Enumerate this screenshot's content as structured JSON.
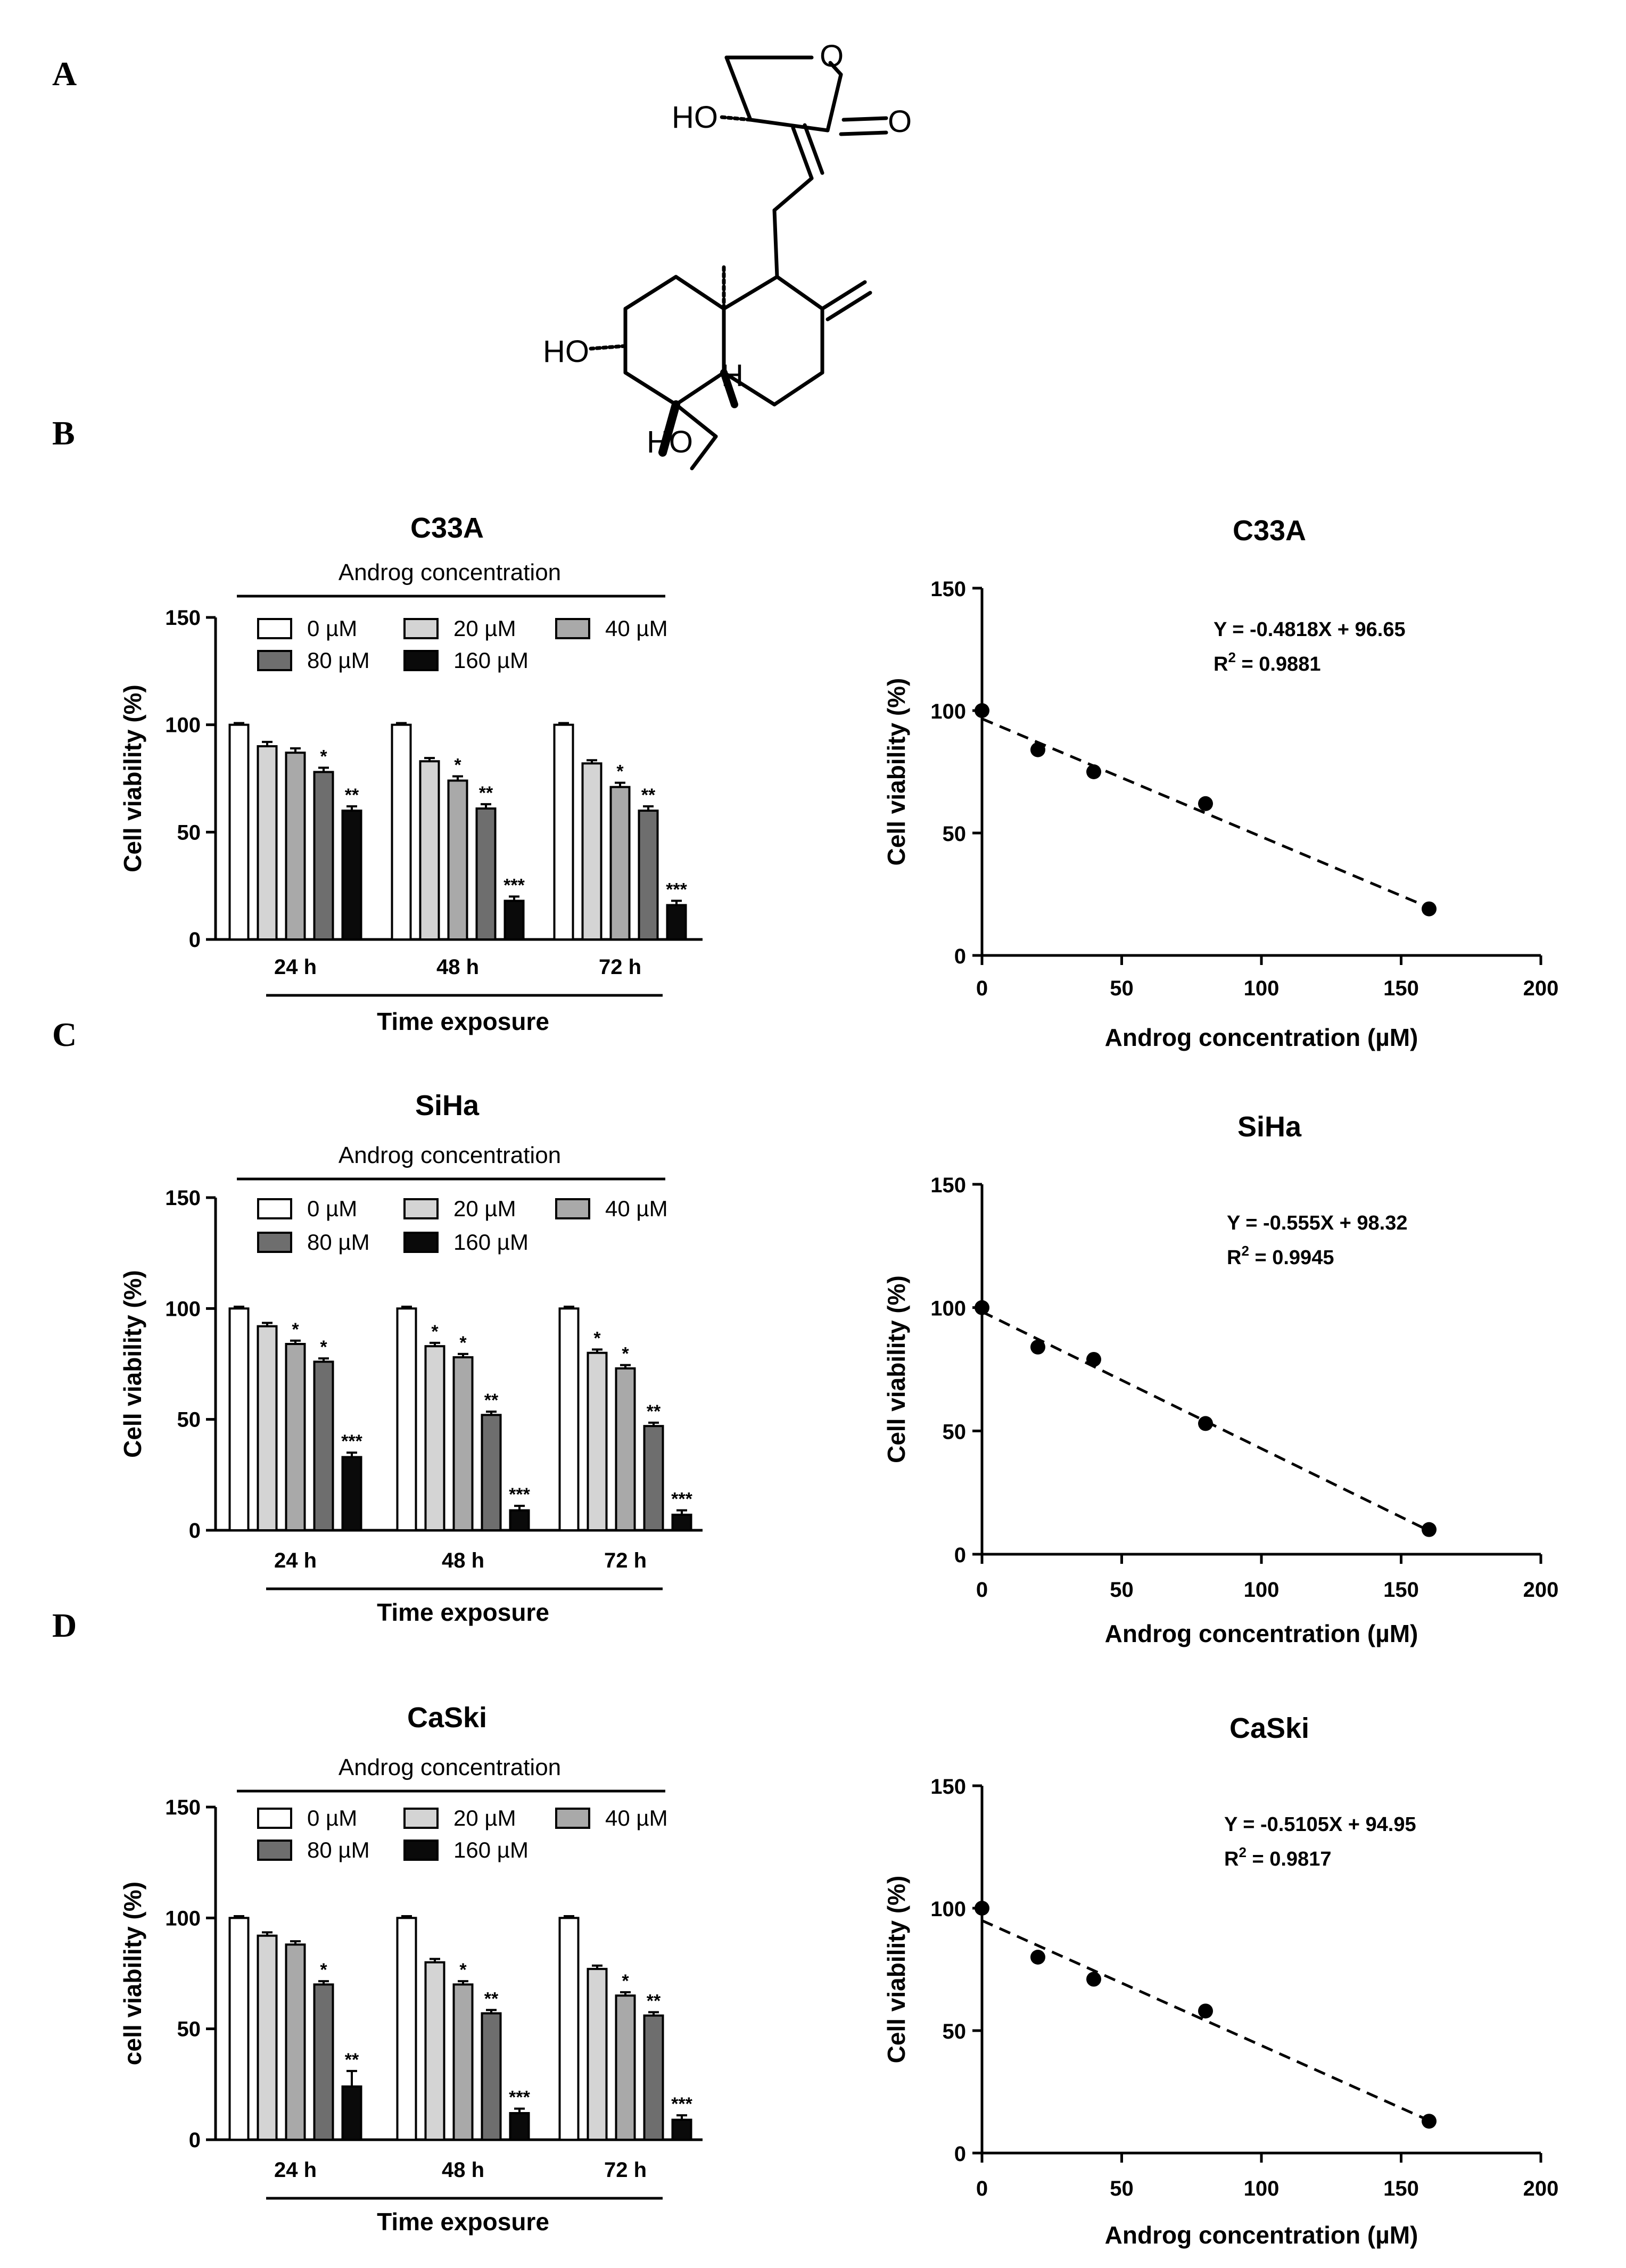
{
  "panels": [
    "A",
    "B",
    "C",
    "D"
  ],
  "molecule": {
    "atoms": [
      "O",
      "O",
      "HO",
      "HO",
      "H",
      "HO"
    ]
  },
  "colors": {
    "bar_fills": [
      "#ffffff",
      "#d4d4d4",
      "#a9a9a9",
      "#6e6e6e",
      "#0a0a0a"
    ],
    "stroke": "#000000"
  },
  "chart_data": [
    {
      "id": "bar-c33a",
      "type": "bar",
      "title": "C33A",
      "subtitle": "Androg concentration",
      "xlabel": "Time exposure",
      "ylabel": "Cell viability (%)",
      "ylim": [
        0,
        150
      ],
      "yticks": [
        "0",
        "50",
        "100",
        "150"
      ],
      "categories": [
        "24 h",
        "48 h",
        "72 h"
      ],
      "series": [
        {
          "name": "0 µM",
          "values": [
            100,
            100,
            100
          ],
          "errors": [
            0.8,
            0.8,
            0.8
          ],
          "stars": [
            "",
            "",
            ""
          ]
        },
        {
          "name": "20 µM",
          "values": [
            90,
            83,
            82
          ],
          "errors": [
            2,
            1.5,
            1.5
          ],
          "stars": [
            "",
            "",
            ""
          ]
        },
        {
          "name": "40 µM",
          "values": [
            87,
            74,
            71
          ],
          "errors": [
            2,
            2,
            2
          ],
          "stars": [
            "",
            "*",
            "*"
          ]
        },
        {
          "name": "80 µM",
          "values": [
            78,
            61,
            60
          ],
          "errors": [
            2,
            2,
            2
          ],
          "stars": [
            "*",
            "**",
            "**"
          ]
        },
        {
          "name": "160 µM",
          "values": [
            60,
            18,
            16
          ],
          "errors": [
            2,
            2,
            2
          ],
          "stars": [
            "**",
            "***",
            "***"
          ]
        }
      ]
    },
    {
      "id": "line-c33a",
      "type": "scatter",
      "title": "C33A",
      "xlabel": "Androg concentration (µM)",
      "ylabel": "Cell viability (%)",
      "xlim": [
        0,
        200
      ],
      "ylim": [
        0,
        150
      ],
      "xticks": [
        "0",
        "50",
        "100",
        "150",
        "200"
      ],
      "yticks": [
        "0",
        "50",
        "100",
        "150"
      ],
      "x": [
        0,
        20,
        40,
        80,
        160
      ],
      "y": [
        100,
        84,
        75,
        62,
        19
      ],
      "fit": {
        "slope": -0.4818,
        "intercept": 96.65
      },
      "equation": "Y = -0.4818X + 96.65",
      "r2_label": "R",
      "r2_sup": "2",
      "r2_value": " = 0.9881"
    },
    {
      "id": "bar-siha",
      "type": "bar",
      "title": "SiHa",
      "subtitle": "Androg concentration",
      "xlabel": "Time exposure",
      "ylabel": "Cell viability (%)",
      "ylim": [
        0,
        150
      ],
      "yticks": [
        "0",
        "50",
        "100",
        "150"
      ],
      "categories": [
        "24 h",
        "48 h",
        "72 h"
      ],
      "series": [
        {
          "name": "0 µM",
          "values": [
            100,
            100,
            100
          ],
          "errors": [
            0.8,
            0.8,
            0.8
          ],
          "stars": [
            "",
            "",
            ""
          ]
        },
        {
          "name": "20 µM",
          "values": [
            92,
            83,
            80
          ],
          "errors": [
            1.5,
            1.5,
            1.5
          ],
          "stars": [
            "",
            "*",
            "*"
          ]
        },
        {
          "name": "40 µM",
          "values": [
            84,
            78,
            73
          ],
          "errors": [
            1.5,
            1.5,
            1.5
          ],
          "stars": [
            "*",
            "*",
            "*"
          ]
        },
        {
          "name": "80 µM",
          "values": [
            76,
            52,
            47
          ],
          "errors": [
            1.5,
            1.5,
            1.5
          ],
          "stars": [
            "*",
            "**",
            "**"
          ]
        },
        {
          "name": "160 µM",
          "values": [
            33,
            9,
            7
          ],
          "errors": [
            2,
            2,
            2
          ],
          "stars": [
            "***",
            "***",
            "***"
          ]
        }
      ]
    },
    {
      "id": "line-siha",
      "type": "scatter",
      "title": "SiHa",
      "xlabel": "Androg concentration (µM)",
      "ylabel": "Cell viability (%)",
      "xlim": [
        0,
        200
      ],
      "ylim": [
        0,
        150
      ],
      "xticks": [
        "0",
        "50",
        "100",
        "150",
        "200"
      ],
      "yticks": [
        "0",
        "50",
        "100",
        "150"
      ],
      "x": [
        0,
        20,
        40,
        80,
        160
      ],
      "y": [
        100,
        84,
        79,
        53,
        10
      ],
      "fit": {
        "slope": -0.555,
        "intercept": 98.32
      },
      "equation": "Y = -0.555X + 98.32",
      "r2_label": "R",
      "r2_sup": "2",
      "r2_value": " = 0.9945"
    },
    {
      "id": "bar-caski",
      "type": "bar",
      "title": "CaSki",
      "subtitle": "Androg concentration",
      "xlabel": "Time exposure",
      "ylabel": "cell viability (%)",
      "ylim": [
        0,
        150
      ],
      "yticks": [
        "0",
        "50",
        "100",
        "150"
      ],
      "categories": [
        "24 h",
        "48 h",
        "72 h"
      ],
      "series": [
        {
          "name": "0 µM",
          "values": [
            100,
            100,
            100
          ],
          "errors": [
            0.8,
            0.8,
            0.8
          ],
          "stars": [
            "",
            "",
            ""
          ]
        },
        {
          "name": "20 µM",
          "values": [
            92,
            80,
            77
          ],
          "errors": [
            1.5,
            1.5,
            1.5
          ],
          "stars": [
            "",
            "",
            ""
          ]
        },
        {
          "name": "40 µM",
          "values": [
            88,
            70,
            65
          ],
          "errors": [
            1.5,
            1.5,
            1.5
          ],
          "stars": [
            "",
            "*",
            "*"
          ]
        },
        {
          "name": "80 µM",
          "values": [
            70,
            57,
            56
          ],
          "errors": [
            1.5,
            1.5,
            1.5
          ],
          "stars": [
            "*",
            "**",
            "**"
          ]
        },
        {
          "name": "160 µM",
          "values": [
            24,
            12,
            9
          ],
          "errors": [
            7,
            2,
            2
          ],
          "stars": [
            "**",
            "***",
            "***"
          ]
        }
      ]
    },
    {
      "id": "line-caski",
      "type": "scatter",
      "title": "CaSki",
      "xlabel": "Androg concentration (µM)",
      "ylabel": "Cell viability (%)",
      "xlim": [
        0,
        200
      ],
      "ylim": [
        0,
        150
      ],
      "xticks": [
        "0",
        "50",
        "100",
        "150",
        "200"
      ],
      "yticks": [
        "0",
        "50",
        "100",
        "150"
      ],
      "x": [
        0,
        20,
        40,
        80,
        160
      ],
      "y": [
        100,
        80,
        71,
        58,
        13
      ],
      "fit": {
        "slope": -0.5105,
        "intercept": 94.95
      },
      "equation": "Y = -0.5105X + 94.95",
      "r2_label": "R",
      "r2_sup": "2",
      "r2_value": " = 0.9817"
    }
  ]
}
